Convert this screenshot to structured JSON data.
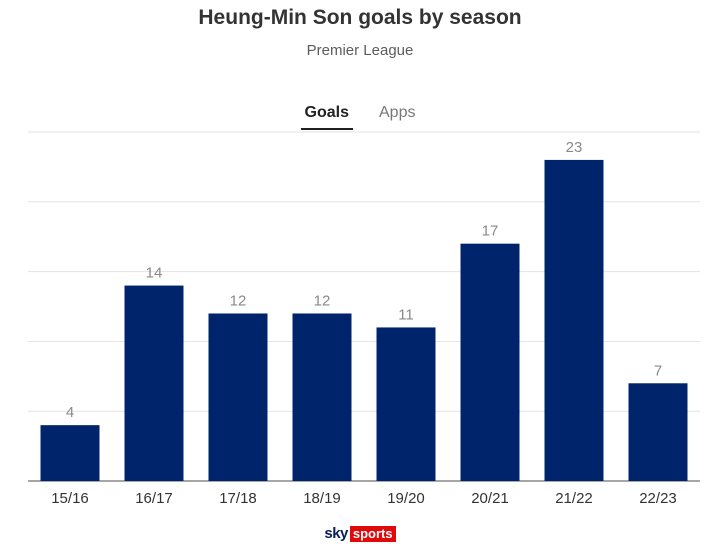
{
  "header": {
    "title": "Heung-Min Son goals by season",
    "subtitle": "Premier League"
  },
  "tabs": [
    {
      "label": "Goals",
      "active": true
    },
    {
      "label": "Apps",
      "active": false
    }
  ],
  "brand": {
    "sky": "sky",
    "sports": "sports"
  },
  "colors": {
    "bar": "#00246b",
    "grid": "#e3e3e3",
    "axis": "#888888"
  },
  "chart_data": {
    "type": "bar",
    "categories": [
      "15/16",
      "16/17",
      "17/18",
      "18/19",
      "19/20",
      "20/21",
      "21/22",
      "22/23"
    ],
    "values": [
      4,
      14,
      12,
      12,
      11,
      17,
      23,
      7
    ],
    "title": "Heung-Min Son goals by season",
    "subtitle": "Premier League",
    "xlabel": "",
    "ylabel": "",
    "ylim": [
      0,
      25
    ],
    "grid": true,
    "data_labels": true
  }
}
